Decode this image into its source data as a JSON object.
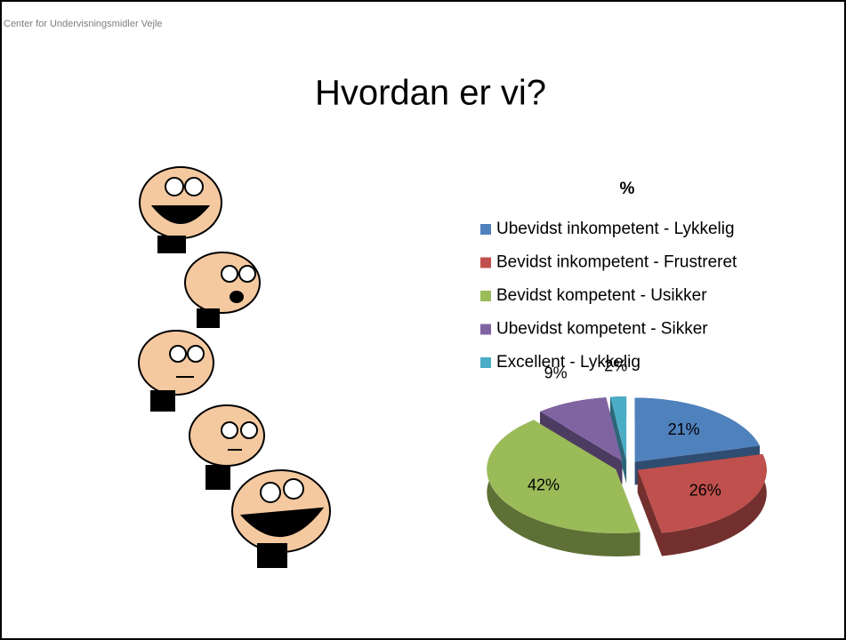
{
  "header": {
    "text": "Center for Undervisningsmidler Vejle"
  },
  "slide": {
    "title": "Hvordan er vi?"
  },
  "chart_data": {
    "type": "pie",
    "title": "%",
    "categories": [
      "Ubevidst inkompetent - Lykkelig",
      "Bevidst inkompetent - Frustreret",
      "Bevidst kompetent - Usikker",
      "Ubevidst kompetent - Sikker",
      "Excellent - Lykkelig"
    ],
    "values": [
      21,
      26,
      42,
      9,
      2
    ],
    "value_labels": [
      "21%",
      "26%",
      "42%",
      "9%",
      "2%"
    ],
    "colors": [
      "#4f81bd",
      "#c0504d",
      "#9bbb59",
      "#8064a2",
      "#4bacc6"
    ],
    "legend": "top"
  }
}
